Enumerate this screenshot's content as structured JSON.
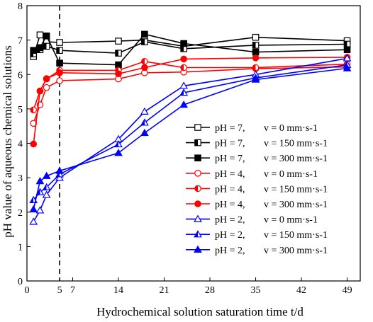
{
  "chart_data": {
    "type": "line",
    "xlabel": "Hydrochemical solution saturation time t/d",
    "ylabel": "pH value of aqueous chemical solutions",
    "xlim": [
      0,
      51
    ],
    "ylim": [
      0,
      8
    ],
    "xticks": [
      0,
      5,
      7,
      14,
      21,
      28,
      35,
      42,
      49
    ],
    "yticks": [
      0,
      1,
      2,
      3,
      4,
      5,
      6,
      7,
      8
    ],
    "vline_x": 5,
    "legend_position": "lower-right",
    "series": [
      {
        "name": "pH = 7, v = 0 mm·s-1",
        "ph": "pH = 7,",
        "speed": "v = 0 mm·s-1",
        "color": "#000000",
        "marker": "square",
        "fill": "open",
        "points": [
          [
            1,
            6.52
          ],
          [
            2,
            7.15
          ],
          [
            3,
            6.95
          ],
          [
            5,
            6.93
          ],
          [
            14,
            6.97
          ],
          [
            18,
            7.0
          ],
          [
            24,
            6.82
          ],
          [
            35,
            7.08
          ],
          [
            49,
            6.98
          ]
        ]
      },
      {
        "name": "pH = 7, v = 150 mm·s-1",
        "ph": "pH = 7,",
        "speed": "v = 150 mm·s-1",
        "color": "#000000",
        "marker": "square",
        "fill": "half",
        "points": [
          [
            1,
            6.6
          ],
          [
            2,
            6.72
          ],
          [
            3,
            6.82
          ],
          [
            5,
            6.7
          ],
          [
            14,
            6.62
          ],
          [
            18,
            6.95
          ],
          [
            24,
            6.75
          ],
          [
            35,
            6.85
          ],
          [
            49,
            6.88
          ]
        ]
      },
      {
        "name": "pH = 7, v = 300 mm·s-1",
        "ph": "pH = 7,",
        "speed": "v = 300 mm·s-1",
        "color": "#000000",
        "marker": "square",
        "fill": "solid",
        "points": [
          [
            1,
            6.7
          ],
          [
            2,
            6.78
          ],
          [
            3,
            7.12
          ],
          [
            5,
            6.33
          ],
          [
            14,
            6.28
          ],
          [
            18,
            7.17
          ],
          [
            24,
            6.9
          ],
          [
            35,
            6.65
          ],
          [
            49,
            6.72
          ]
        ]
      },
      {
        "name": "pH = 4, v = 0 mm·s-1",
        "ph": "pH = 4,",
        "speed": "v = 0 mm·s-1",
        "color": "#ff0000",
        "marker": "circle",
        "fill": "open",
        "points": [
          [
            1,
            4.58
          ],
          [
            2,
            5.12
          ],
          [
            3,
            5.62
          ],
          [
            5,
            5.82
          ],
          [
            14,
            5.87
          ],
          [
            18,
            6.05
          ],
          [
            24,
            6.07
          ],
          [
            35,
            6.17
          ],
          [
            49,
            6.22
          ]
        ]
      },
      {
        "name": "pH = 4, v = 150 mm·s-1",
        "ph": "pH = 4,",
        "speed": "v = 150 mm·s-1",
        "color": "#ff0000",
        "marker": "circle",
        "fill": "half",
        "points": [
          [
            1,
            4.97
          ],
          [
            2,
            5.52
          ],
          [
            3,
            5.87
          ],
          [
            5,
            6.12
          ],
          [
            14,
            6.12
          ],
          [
            18,
            6.38
          ],
          [
            24,
            6.2
          ],
          [
            35,
            6.2
          ],
          [
            49,
            6.3
          ]
        ]
      },
      {
        "name": "pH = 4, v = 300 mm·s-1",
        "ph": "pH = 4,",
        "speed": "v = 300 mm·s-1",
        "color": "#ff0000",
        "marker": "circle",
        "fill": "solid",
        "points": [
          [
            1,
            3.98
          ],
          [
            2,
            5.52
          ],
          [
            3,
            5.88
          ],
          [
            5,
            6.05
          ],
          [
            14,
            6.02
          ],
          [
            18,
            6.2
          ],
          [
            24,
            6.45
          ],
          [
            35,
            6.48
          ],
          [
            49,
            6.5
          ]
        ]
      },
      {
        "name": "pH = 2, v = 0 mm·s-1",
        "ph": "pH = 2,",
        "speed": "v = 0 mm·s-1",
        "color": "#0000ff",
        "marker": "triangle",
        "fill": "open",
        "points": [
          [
            1,
            1.72
          ],
          [
            2,
            2.05
          ],
          [
            3,
            2.5
          ],
          [
            5,
            3.0
          ],
          [
            14,
            4.12
          ],
          [
            18,
            4.92
          ],
          [
            24,
            5.67
          ],
          [
            35,
            6.0
          ],
          [
            49,
            6.47
          ]
        ]
      },
      {
        "name": "pH = 2, v = 150 mm·s-1",
        "ph": "pH = 2,",
        "speed": "v = 150 mm·s-1",
        "color": "#0000ff",
        "marker": "triangle",
        "fill": "half",
        "points": [
          [
            1,
            2.35
          ],
          [
            2,
            2.58
          ],
          [
            3,
            2.72
          ],
          [
            5,
            3.1
          ],
          [
            14,
            3.97
          ],
          [
            18,
            4.6
          ],
          [
            24,
            5.47
          ],
          [
            35,
            5.9
          ],
          [
            49,
            6.28
          ]
        ]
      },
      {
        "name": "pH = 2, v = 300 mm·s-1",
        "ph": "pH = 2,",
        "speed": "v = 300 mm·s-1",
        "color": "#0000ff",
        "marker": "triangle",
        "fill": "solid",
        "points": [
          [
            1,
            2.08
          ],
          [
            2,
            2.9
          ],
          [
            3,
            3.05
          ],
          [
            5,
            3.2
          ],
          [
            14,
            3.72
          ],
          [
            18,
            4.3
          ],
          [
            24,
            5.12
          ],
          [
            35,
            5.85
          ],
          [
            49,
            6.18
          ]
        ]
      }
    ]
  }
}
